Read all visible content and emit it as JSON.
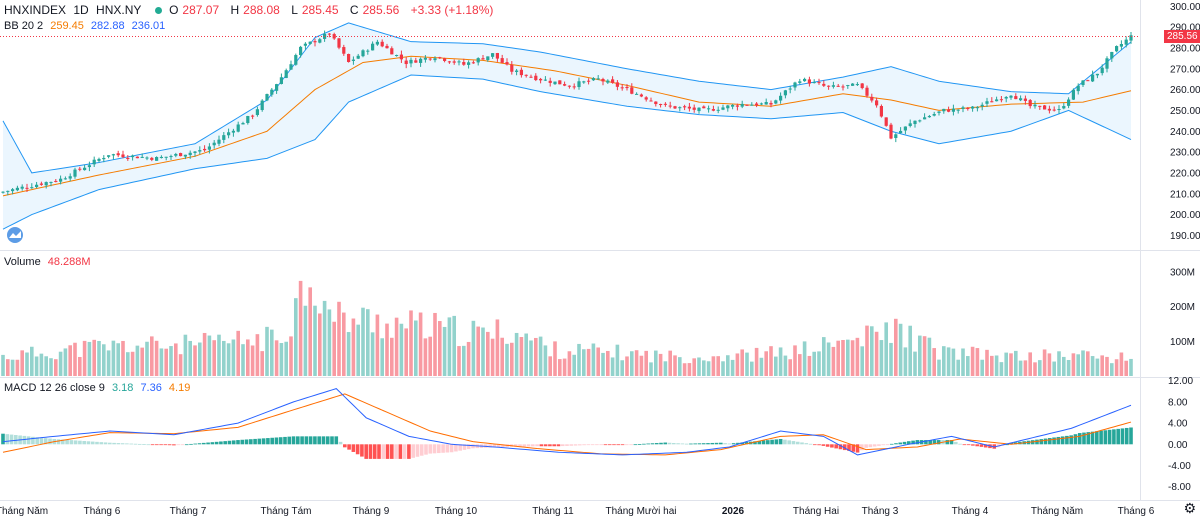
{
  "header": {
    "symbol": "HNXINDEX",
    "interval": "1D",
    "exchange": "HNX.NY",
    "open_label": "O",
    "open": "287.07",
    "high_label": "H",
    "high": "288.08",
    "low_label": "L",
    "low": "285.45",
    "close_label": "C",
    "close": "285.56",
    "change": "+3.33 (+1.18%)"
  },
  "bb_legend": {
    "name": "BB 20 2",
    "basis": "259.45",
    "upper": "282.88",
    "lower": "236.01"
  },
  "volume_legend": {
    "name": "Volume",
    "value": "48.288M"
  },
  "macd_legend": {
    "name": "MACD 12 26 close 9",
    "hist": "3.18",
    "macd": "7.36",
    "signal": "4.19"
  },
  "price_tag": "285.56",
  "colors": {
    "up": "#26a69a",
    "down": "#f23645",
    "bb_band": "#2196f3",
    "bb_basis": "#f57c00",
    "macd": "#2962ff",
    "signal": "#ff6d00"
  },
  "chart_data": [
    {
      "type": "candlestick",
      "y_ticks": [
        190,
        200,
        210,
        220,
        230,
        240,
        250,
        260,
        270,
        280,
        290,
        300
      ],
      "ylim": [
        183,
        303
      ],
      "x_labels": [
        "Tháng Năm",
        "Tháng 6",
        "Tháng 7",
        "Tháng Tám",
        "Tháng 9",
        "Tháng 10",
        "Tháng 11",
        "Tháng Mười hai",
        "2026",
        "Tháng Hai",
        "Tháng 3",
        "Tháng 4",
        "Tháng Năm",
        "Tháng 6"
      ],
      "close_anchors": [
        [
          0,
          211
        ],
        [
          12,
          217
        ],
        [
          22,
          229
        ],
        [
          32,
          227
        ],
        [
          42,
          231
        ],
        [
          52,
          248
        ],
        [
          58,
          266
        ],
        [
          62,
          280
        ],
        [
          68,
          287
        ],
        [
          72,
          273
        ],
        [
          78,
          283
        ],
        [
          84,
          273
        ],
        [
          90,
          276
        ],
        [
          96,
          272
        ],
        [
          102,
          277
        ],
        [
          106,
          269
        ],
        [
          112,
          265
        ],
        [
          118,
          262
        ],
        [
          124,
          265
        ],
        [
          130,
          260
        ],
        [
          138,
          252
        ],
        [
          146,
          250
        ],
        [
          154,
          253
        ],
        [
          160,
          253
        ],
        [
          166,
          265
        ],
        [
          172,
          261
        ],
        [
          178,
          262
        ],
        [
          182,
          253
        ],
        [
          185,
          237
        ],
        [
          190,
          245
        ],
        [
          196,
          250
        ],
        [
          202,
          251
        ],
        [
          210,
          258
        ],
        [
          214,
          252
        ],
        [
          220,
          250
        ],
        [
          224,
          262
        ],
        [
          228,
          268
        ],
        [
          232,
          280
        ],
        [
          235,
          285.56
        ]
      ],
      "bb_basis_anchors": [
        [
          0,
          209
        ],
        [
          20,
          219
        ],
        [
          40,
          228
        ],
        [
          55,
          240
        ],
        [
          65,
          260
        ],
        [
          75,
          273
        ],
        [
          85,
          276
        ],
        [
          100,
          274
        ],
        [
          115,
          269
        ],
        [
          130,
          262
        ],
        [
          145,
          254
        ],
        [
          160,
          252
        ],
        [
          175,
          258
        ],
        [
          185,
          255
        ],
        [
          195,
          250
        ],
        [
          210,
          253
        ],
        [
          225,
          254
        ],
        [
          235,
          259.45
        ]
      ],
      "bb_upper_anchors": [
        [
          0,
          245
        ],
        [
          6,
          220
        ],
        [
          20,
          225
        ],
        [
          40,
          234
        ],
        [
          55,
          255
        ],
        [
          65,
          285
        ],
        [
          72,
          292
        ],
        [
          85,
          283
        ],
        [
          100,
          282
        ],
        [
          112,
          278
        ],
        [
          130,
          270
        ],
        [
          145,
          264
        ],
        [
          160,
          260
        ],
        [
          175,
          266
        ],
        [
          185,
          271
        ],
        [
          195,
          264
        ],
        [
          210,
          259
        ],
        [
          222,
          258
        ],
        [
          235,
          282.88
        ]
      ],
      "bb_lower_anchors": [
        [
          0,
          193
        ],
        [
          6,
          200
        ],
        [
          20,
          212
        ],
        [
          40,
          222
        ],
        [
          55,
          227
        ],
        [
          65,
          236
        ],
        [
          72,
          254
        ],
        [
          85,
          267
        ],
        [
          100,
          265
        ],
        [
          112,
          259
        ],
        [
          130,
          252
        ],
        [
          145,
          248
        ],
        [
          160,
          246
        ],
        [
          175,
          249
        ],
        [
          185,
          240
        ],
        [
          195,
          234
        ],
        [
          210,
          240
        ],
        [
          222,
          250
        ],
        [
          235,
          236.01
        ]
      ]
    },
    {
      "type": "bar",
      "name": "Volume",
      "y_ticks": [
        "100M",
        "200M",
        "300M"
      ],
      "ylim": [
        0,
        340
      ],
      "anchors": [
        [
          0,
          55
        ],
        [
          20,
          85
        ],
        [
          40,
          90
        ],
        [
          58,
          110
        ],
        [
          64,
          300
        ],
        [
          68,
          170
        ],
        [
          75,
          160
        ],
        [
          85,
          145
        ],
        [
          100,
          120
        ],
        [
          106,
          130
        ],
        [
          115,
          75
        ],
        [
          125,
          70
        ],
        [
          140,
          55
        ],
        [
          155,
          60
        ],
        [
          165,
          70
        ],
        [
          180,
          110
        ],
        [
          186,
          135
        ],
        [
          195,
          70
        ],
        [
          210,
          55
        ],
        [
          225,
          60
        ],
        [
          235,
          48
        ]
      ]
    },
    {
      "type": "line",
      "name": "MACD",
      "y_ticks": [
        -8,
        -4,
        0,
        4,
        8,
        12
      ],
      "ylim": [
        -10.5,
        12.5
      ],
      "macd_anchors": [
        [
          0,
          0.5
        ],
        [
          12,
          1.5
        ],
        [
          25,
          2.5
        ],
        [
          40,
          1.8
        ],
        [
          55,
          4
        ],
        [
          68,
          8
        ],
        [
          78,
          10.5
        ],
        [
          85,
          5
        ],
        [
          95,
          1.5
        ],
        [
          105,
          0
        ],
        [
          115,
          -0.5
        ],
        [
          130,
          -1.5
        ],
        [
          145,
          -2
        ],
        [
          160,
          -1.5
        ],
        [
          170,
          -0.5
        ],
        [
          182,
          2.5
        ],
        [
          192,
          1.5
        ],
        [
          200,
          -2
        ],
        [
          212,
          0
        ],
        [
          222,
          1.5
        ],
        [
          232,
          -0.5
        ],
        [
          250,
          3
        ],
        [
          264,
          7.36
        ]
      ],
      "signal_anchors": [
        [
          0,
          -1.5
        ],
        [
          12,
          0.5
        ],
        [
          25,
          2.2
        ],
        [
          40,
          2
        ],
        [
          55,
          3.2
        ],
        [
          68,
          6.5
        ],
        [
          80,
          9.5
        ],
        [
          90,
          6
        ],
        [
          100,
          2.5
        ],
        [
          110,
          0.5
        ],
        [
          125,
          -0.8
        ],
        [
          140,
          -1.8
        ],
        [
          155,
          -2
        ],
        [
          168,
          -1
        ],
        [
          182,
          1.5
        ],
        [
          192,
          1.8
        ],
        [
          202,
          -1
        ],
        [
          214,
          -0.5
        ],
        [
          224,
          1
        ],
        [
          236,
          0
        ],
        [
          252,
          1.5
        ],
        [
          264,
          4.19
        ]
      ]
    }
  ]
}
